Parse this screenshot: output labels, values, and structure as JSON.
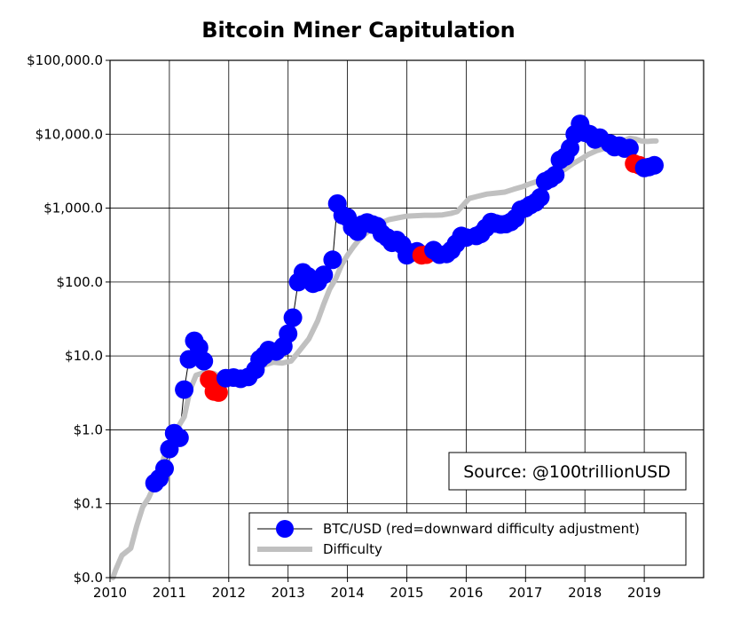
{
  "chart_data": {
    "type": "scatter",
    "title": "Bitcoin Miner Capitulation",
    "xlabel": "",
    "ylabel": "",
    "xlim": [
      2010,
      2020
    ],
    "ylim": [
      0.01,
      100000
    ],
    "y_scale": "log",
    "x_ticks": [
      2010,
      2011,
      2012,
      2013,
      2014,
      2015,
      2016,
      2017,
      2018,
      2019
    ],
    "y_ticks": [
      0.01,
      0.1,
      1,
      10,
      100,
      1000,
      10000,
      100000
    ],
    "y_tick_labels": [
      "$0.0",
      "$0.1",
      "$1.0",
      "$10.0",
      "$100.0",
      "$1,000.0",
      "$10,000.0",
      "$100,000.0"
    ],
    "grid": true,
    "legend": {
      "placement": "bottom-right",
      "entries": [
        {
          "label": "BTC/USD (red=downward difficulty adjustment)",
          "color": "#0000ff",
          "marker": "circle"
        },
        {
          "label": "Difficulty",
          "color": "#c0c0c0",
          "marker": "thick-line"
        }
      ]
    },
    "annotation": "Source: @100trillionUSD",
    "colors": {
      "price": "#0000ff",
      "price_down": "#ff0000",
      "difficulty": "#c0c0c0",
      "price_line": "#000000"
    },
    "series": [
      {
        "name": "BTC/USD (red=downward difficulty adjustment)",
        "points": [
          [
            2010.75,
            0.19,
            0
          ],
          [
            2010.83,
            0.22,
            0
          ],
          [
            2010.92,
            0.3,
            0
          ],
          [
            2011.0,
            0.55,
            0
          ],
          [
            2011.08,
            0.9,
            0
          ],
          [
            2011.17,
            0.78,
            0
          ],
          [
            2011.25,
            3.5,
            0
          ],
          [
            2011.33,
            9.0,
            0
          ],
          [
            2011.42,
            16.0,
            0
          ],
          [
            2011.5,
            13.0,
            0
          ],
          [
            2011.58,
            8.5,
            0
          ],
          [
            2011.67,
            4.8,
            1
          ],
          [
            2011.75,
            3.3,
            1
          ],
          [
            2011.83,
            3.2,
            1
          ],
          [
            2011.95,
            5.0,
            0
          ],
          [
            2012.08,
            5.1,
            0
          ],
          [
            2012.2,
            4.9,
            0
          ],
          [
            2012.33,
            5.2,
            0
          ],
          [
            2012.45,
            6.5,
            0
          ],
          [
            2012.52,
            9.0,
            0
          ],
          [
            2012.6,
            10.2,
            0
          ],
          [
            2012.67,
            12.0,
            0
          ],
          [
            2012.8,
            11.5,
            0
          ],
          [
            2012.92,
            13.5,
            0
          ],
          [
            2013.0,
            20.0,
            0
          ],
          [
            2013.08,
            33.0,
            0
          ],
          [
            2013.17,
            100.0,
            0
          ],
          [
            2013.25,
            135.0,
            0
          ],
          [
            2013.33,
            120.0,
            0
          ],
          [
            2013.42,
            95.0,
            0
          ],
          [
            2013.5,
            100.0,
            0
          ],
          [
            2013.6,
            125.0,
            0
          ],
          [
            2013.75,
            200.0,
            0
          ],
          [
            2013.83,
            1150.0,
            0
          ],
          [
            2013.92,
            800.0,
            0
          ],
          [
            2014.0,
            750.0,
            0
          ],
          [
            2014.08,
            550.0,
            0
          ],
          [
            2014.17,
            480.0,
            0
          ],
          [
            2014.25,
            600.0,
            0
          ],
          [
            2014.33,
            640.0,
            0
          ],
          [
            2014.42,
            600.0,
            0
          ],
          [
            2014.5,
            570.0,
            0
          ],
          [
            2014.58,
            450.0,
            0
          ],
          [
            2014.67,
            400.0,
            0
          ],
          [
            2014.75,
            340.0,
            0
          ],
          [
            2014.83,
            370.0,
            0
          ],
          [
            2014.92,
            320.0,
            0
          ],
          [
            2015.0,
            230.0,
            0
          ],
          [
            2015.08,
            250.0,
            0
          ],
          [
            2015.17,
            260.0,
            0
          ],
          [
            2015.25,
            230.0,
            1
          ],
          [
            2015.33,
            235.0,
            1
          ],
          [
            2015.45,
            270.0,
            0
          ],
          [
            2015.55,
            235.0,
            0
          ],
          [
            2015.67,
            240.0,
            0
          ],
          [
            2015.75,
            270.0,
            0
          ],
          [
            2015.83,
            330.0,
            0
          ],
          [
            2015.92,
            420.0,
            0
          ],
          [
            2016.0,
            400.0,
            0
          ],
          [
            2016.17,
            420.0,
            0
          ],
          [
            2016.25,
            450.0,
            0
          ],
          [
            2016.33,
            540.0,
            0
          ],
          [
            2016.42,
            650.0,
            0
          ],
          [
            2016.5,
            620.0,
            0
          ],
          [
            2016.58,
            600.0,
            0
          ],
          [
            2016.67,
            610.0,
            0
          ],
          [
            2016.75,
            650.0,
            0
          ],
          [
            2016.83,
            730.0,
            0
          ],
          [
            2016.92,
            950.0,
            0
          ],
          [
            2017.0,
            1000.0,
            0
          ],
          [
            2017.08,
            1100.0,
            0
          ],
          [
            2017.17,
            1200.0,
            0
          ],
          [
            2017.25,
            1400.0,
            0
          ],
          [
            2017.33,
            2300.0,
            0
          ],
          [
            2017.42,
            2500.0,
            0
          ],
          [
            2017.5,
            2800.0,
            0
          ],
          [
            2017.58,
            4500.0,
            0
          ],
          [
            2017.67,
            5000.0,
            0
          ],
          [
            2017.75,
            6500.0,
            0
          ],
          [
            2017.83,
            10000.0,
            0
          ],
          [
            2017.92,
            13800.0,
            0
          ],
          [
            2018.0,
            10500.0,
            0
          ],
          [
            2018.08,
            10000.0,
            0
          ],
          [
            2018.17,
            8500.0,
            0
          ],
          [
            2018.25,
            9000.0,
            0
          ],
          [
            2018.42,
            7500.0,
            0
          ],
          [
            2018.5,
            6700.0,
            0
          ],
          [
            2018.58,
            7000.0,
            0
          ],
          [
            2018.67,
            6400.0,
            0
          ],
          [
            2018.75,
            6500.0,
            0
          ],
          [
            2018.83,
            4000.0,
            1
          ],
          [
            2018.92,
            3800.0,
            1
          ],
          [
            2019.0,
            3500.0,
            0
          ],
          [
            2019.08,
            3600.0,
            0
          ],
          [
            2019.17,
            3800.0,
            0
          ]
        ]
      },
      {
        "name": "Difficulty",
        "points": [
          [
            2010.05,
            0.01
          ],
          [
            2010.1,
            0.013
          ],
          [
            2010.2,
            0.02
          ],
          [
            2010.35,
            0.025
          ],
          [
            2010.45,
            0.05
          ],
          [
            2010.55,
            0.09
          ],
          [
            2010.65,
            0.12
          ],
          [
            2010.75,
            0.18
          ],
          [
            2010.85,
            0.3
          ],
          [
            2010.95,
            0.55
          ],
          [
            2011.05,
            0.8
          ],
          [
            2011.15,
            1.1
          ],
          [
            2011.25,
            1.5
          ],
          [
            2011.35,
            3.5
          ],
          [
            2011.45,
            5.5
          ],
          [
            2011.6,
            6.0
          ],
          [
            2011.75,
            5.8
          ],
          [
            2011.9,
            5.0
          ],
          [
            2012.0,
            5.2
          ],
          [
            2012.15,
            5.5
          ],
          [
            2012.3,
            6.0
          ],
          [
            2012.45,
            6.5
          ],
          [
            2012.6,
            7.5
          ],
          [
            2012.75,
            8.2
          ],
          [
            2012.9,
            8.0
          ],
          [
            2013.05,
            8.5
          ],
          [
            2013.2,
            12.0
          ],
          [
            2013.35,
            17.0
          ],
          [
            2013.5,
            30.0
          ],
          [
            2013.6,
            50.0
          ],
          [
            2013.7,
            80.0
          ],
          [
            2013.8,
            110.0
          ],
          [
            2013.9,
            170.0
          ],
          [
            2014.0,
            230.0
          ],
          [
            2014.1,
            300.0
          ],
          [
            2014.2,
            380.0
          ],
          [
            2014.3,
            450.0
          ],
          [
            2014.4,
            520.0
          ],
          [
            2014.5,
            580.0
          ],
          [
            2014.6,
            650.0
          ],
          [
            2014.7,
            700.0
          ],
          [
            2014.85,
            740.0
          ],
          [
            2015.0,
            780.0
          ],
          [
            2015.15,
            790.0
          ],
          [
            2015.3,
            800.0
          ],
          [
            2015.45,
            800.0
          ],
          [
            2015.6,
            810.0
          ],
          [
            2015.75,
            850.0
          ],
          [
            2015.85,
            900.0
          ],
          [
            2015.95,
            1100.0
          ],
          [
            2016.05,
            1350.0
          ],
          [
            2016.2,
            1450.0
          ],
          [
            2016.35,
            1550.0
          ],
          [
            2016.5,
            1600.0
          ],
          [
            2016.65,
            1650.0
          ],
          [
            2016.8,
            1800.0
          ],
          [
            2016.95,
            1950.0
          ],
          [
            2017.05,
            2100.0
          ],
          [
            2017.2,
            2300.0
          ],
          [
            2017.35,
            2600.0
          ],
          [
            2017.5,
            2900.0
          ],
          [
            2017.65,
            3300.0
          ],
          [
            2017.8,
            4000.0
          ],
          [
            2017.95,
            4700.0
          ],
          [
            2018.05,
            5300.0
          ],
          [
            2018.2,
            6000.0
          ],
          [
            2018.35,
            6500.0
          ],
          [
            2018.5,
            7300.0
          ],
          [
            2018.65,
            8200.0
          ],
          [
            2018.75,
            8800.0
          ],
          [
            2018.85,
            8600.0
          ],
          [
            2018.95,
            8100.0
          ],
          [
            2019.05,
            8000.0
          ],
          [
            2019.15,
            8100.0
          ],
          [
            2019.2,
            8100.0
          ]
        ]
      }
    ]
  }
}
